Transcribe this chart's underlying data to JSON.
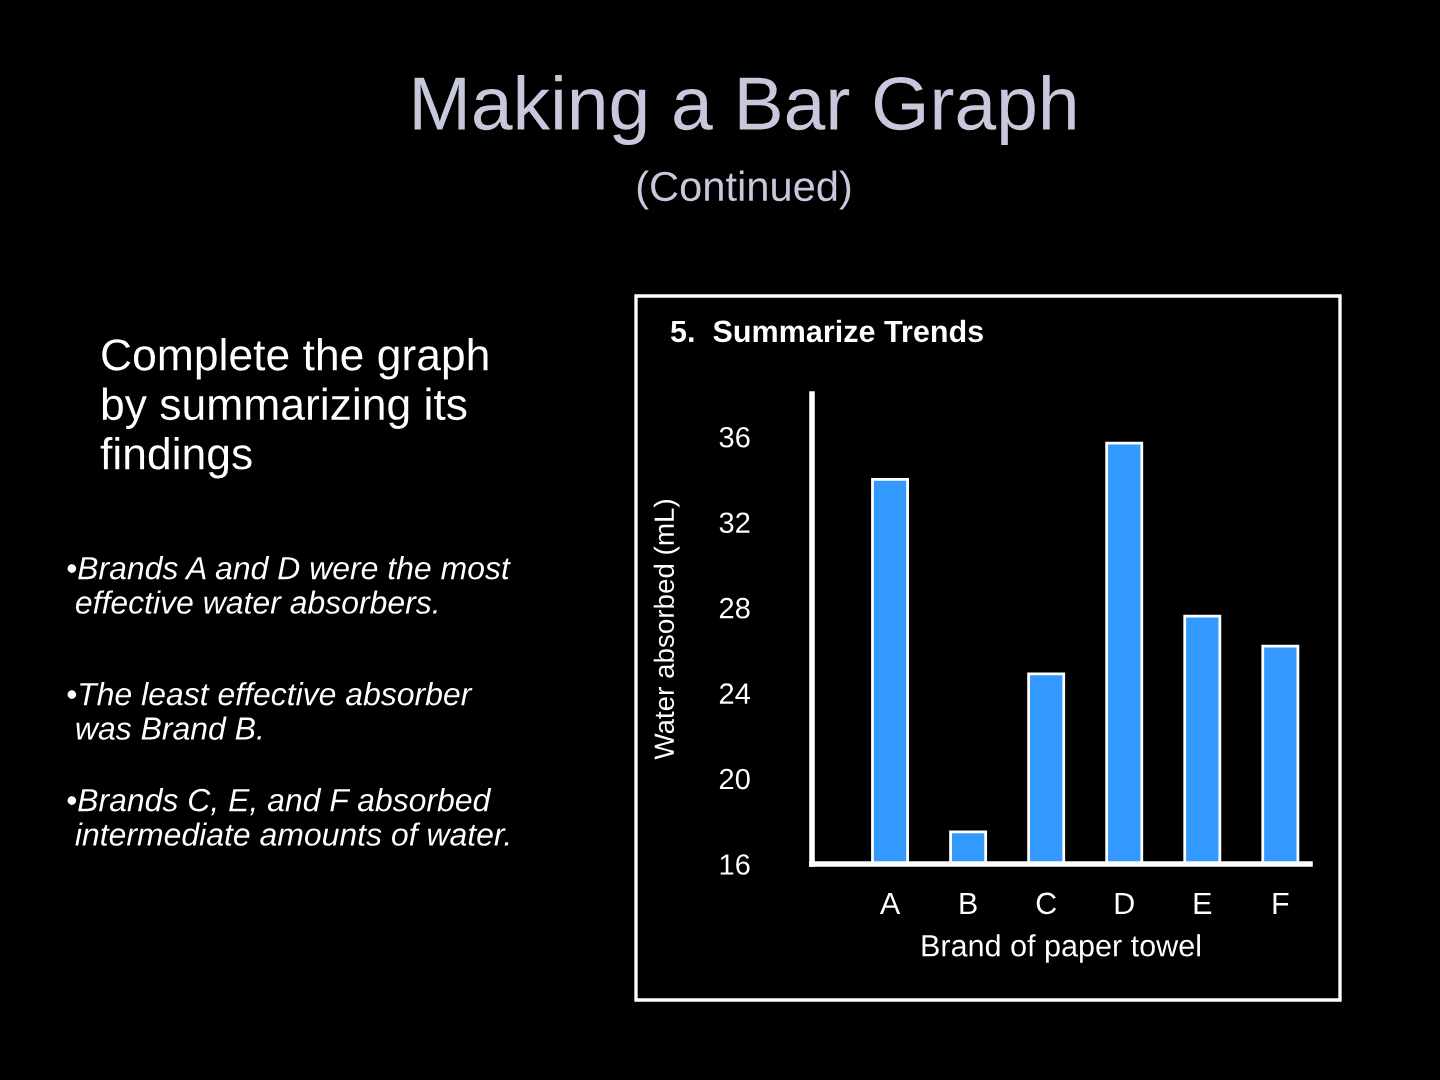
{
  "chart_data": {
    "type": "bar",
    "title": "Making a Bar Graph",
    "subtitle": "(Continued)",
    "xlabel": "Brand of paper towel",
    "ylabel": "Water absorbed (mL)",
    "categories": [
      "A",
      "B",
      "C",
      "D",
      "E",
      "F"
    ],
    "values": [
      34,
      17.5,
      24.9,
      35.7,
      27.6,
      26.2
    ],
    "color": "#3399ff",
    "ylim": [
      16,
      38
    ],
    "yticks": [
      16,
      20,
      24,
      28,
      32,
      36
    ],
    "annotations": [
      "5.  Summarize Trends",
      "Complete the graph\nby summarizing its\nfindings",
      "•Brands A and D were the most\n effective water absorbers.",
      "•The least effective absorber\n was Brand B.",
      "•Brands C, E, and F absorbed\n intermediate amounts of water."
    ]
  }
}
